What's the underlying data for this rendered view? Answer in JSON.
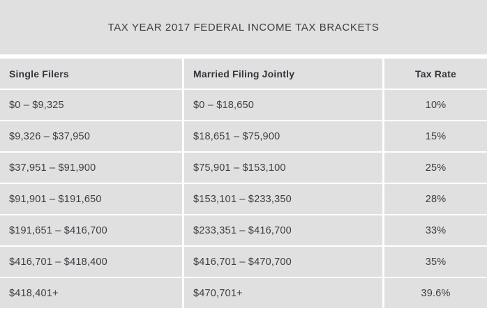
{
  "page": {
    "title": "TAX YEAR 2017 FEDERAL INCOME TAX BRACKETS"
  },
  "chart_data": {
    "type": "table",
    "title": "TAX YEAR 2017 FEDERAL INCOME TAX BRACKETS",
    "columns": [
      "Single Filers",
      "Married Filing Jointly",
      "Tax Rate"
    ],
    "rows": [
      [
        "$0 – $9,325",
        "$0 – $18,650",
        "10%"
      ],
      [
        "$9,326 – $37,950",
        "$18,651 – $75,900",
        "15%"
      ],
      [
        "$37,951 – $91,900",
        "$75,901 – $153,100",
        "25%"
      ],
      [
        "$91,901 – $191,650",
        "$153,101 – $233,350",
        "28%"
      ],
      [
        "$191,651 – $416,700",
        "$233,351 – $416,700",
        "33%"
      ],
      [
        "$416,701 – $418,400",
        "$416,701 – $470,700",
        "35%"
      ],
      [
        "$418,401+",
        "$470,701+",
        "39.6%"
      ]
    ],
    "tax_rates_percent": [
      10,
      15,
      25,
      28,
      33,
      35,
      39.6
    ],
    "layout": "three-column table, rate column centered, header row bold"
  },
  "colors": {
    "cell_background": "#e0e0e0",
    "page_background": "#ffffff",
    "header_text": "#33373d",
    "body_text": "#3b3e44"
  }
}
